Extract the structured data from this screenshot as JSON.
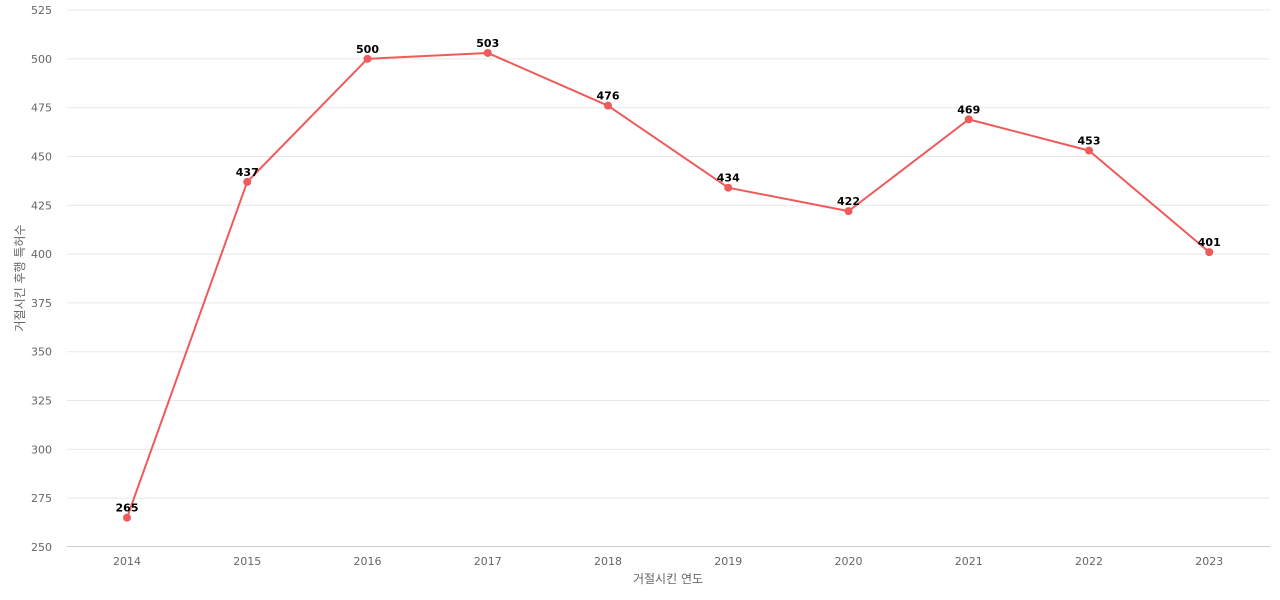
{
  "chart_data": {
    "type": "line",
    "title": "",
    "xlabel": "거절시킨 연도",
    "ylabel": "거절시킨 후행 특허수",
    "x": [
      "2014",
      "2015",
      "2016",
      "2017",
      "2018",
      "2019",
      "2020",
      "2021",
      "2022",
      "2023"
    ],
    "series": [
      {
        "values": [
          265,
          437,
          500,
          503,
          476,
          434,
          422,
          469,
          453,
          401
        ]
      }
    ],
    "ylim": [
      250,
      525
    ],
    "yticks": [
      250,
      275,
      300,
      325,
      350,
      375,
      400,
      425,
      450,
      475,
      500,
      525
    ],
    "grid": true,
    "legend": "none",
    "line_color": "#ef5a5a"
  }
}
